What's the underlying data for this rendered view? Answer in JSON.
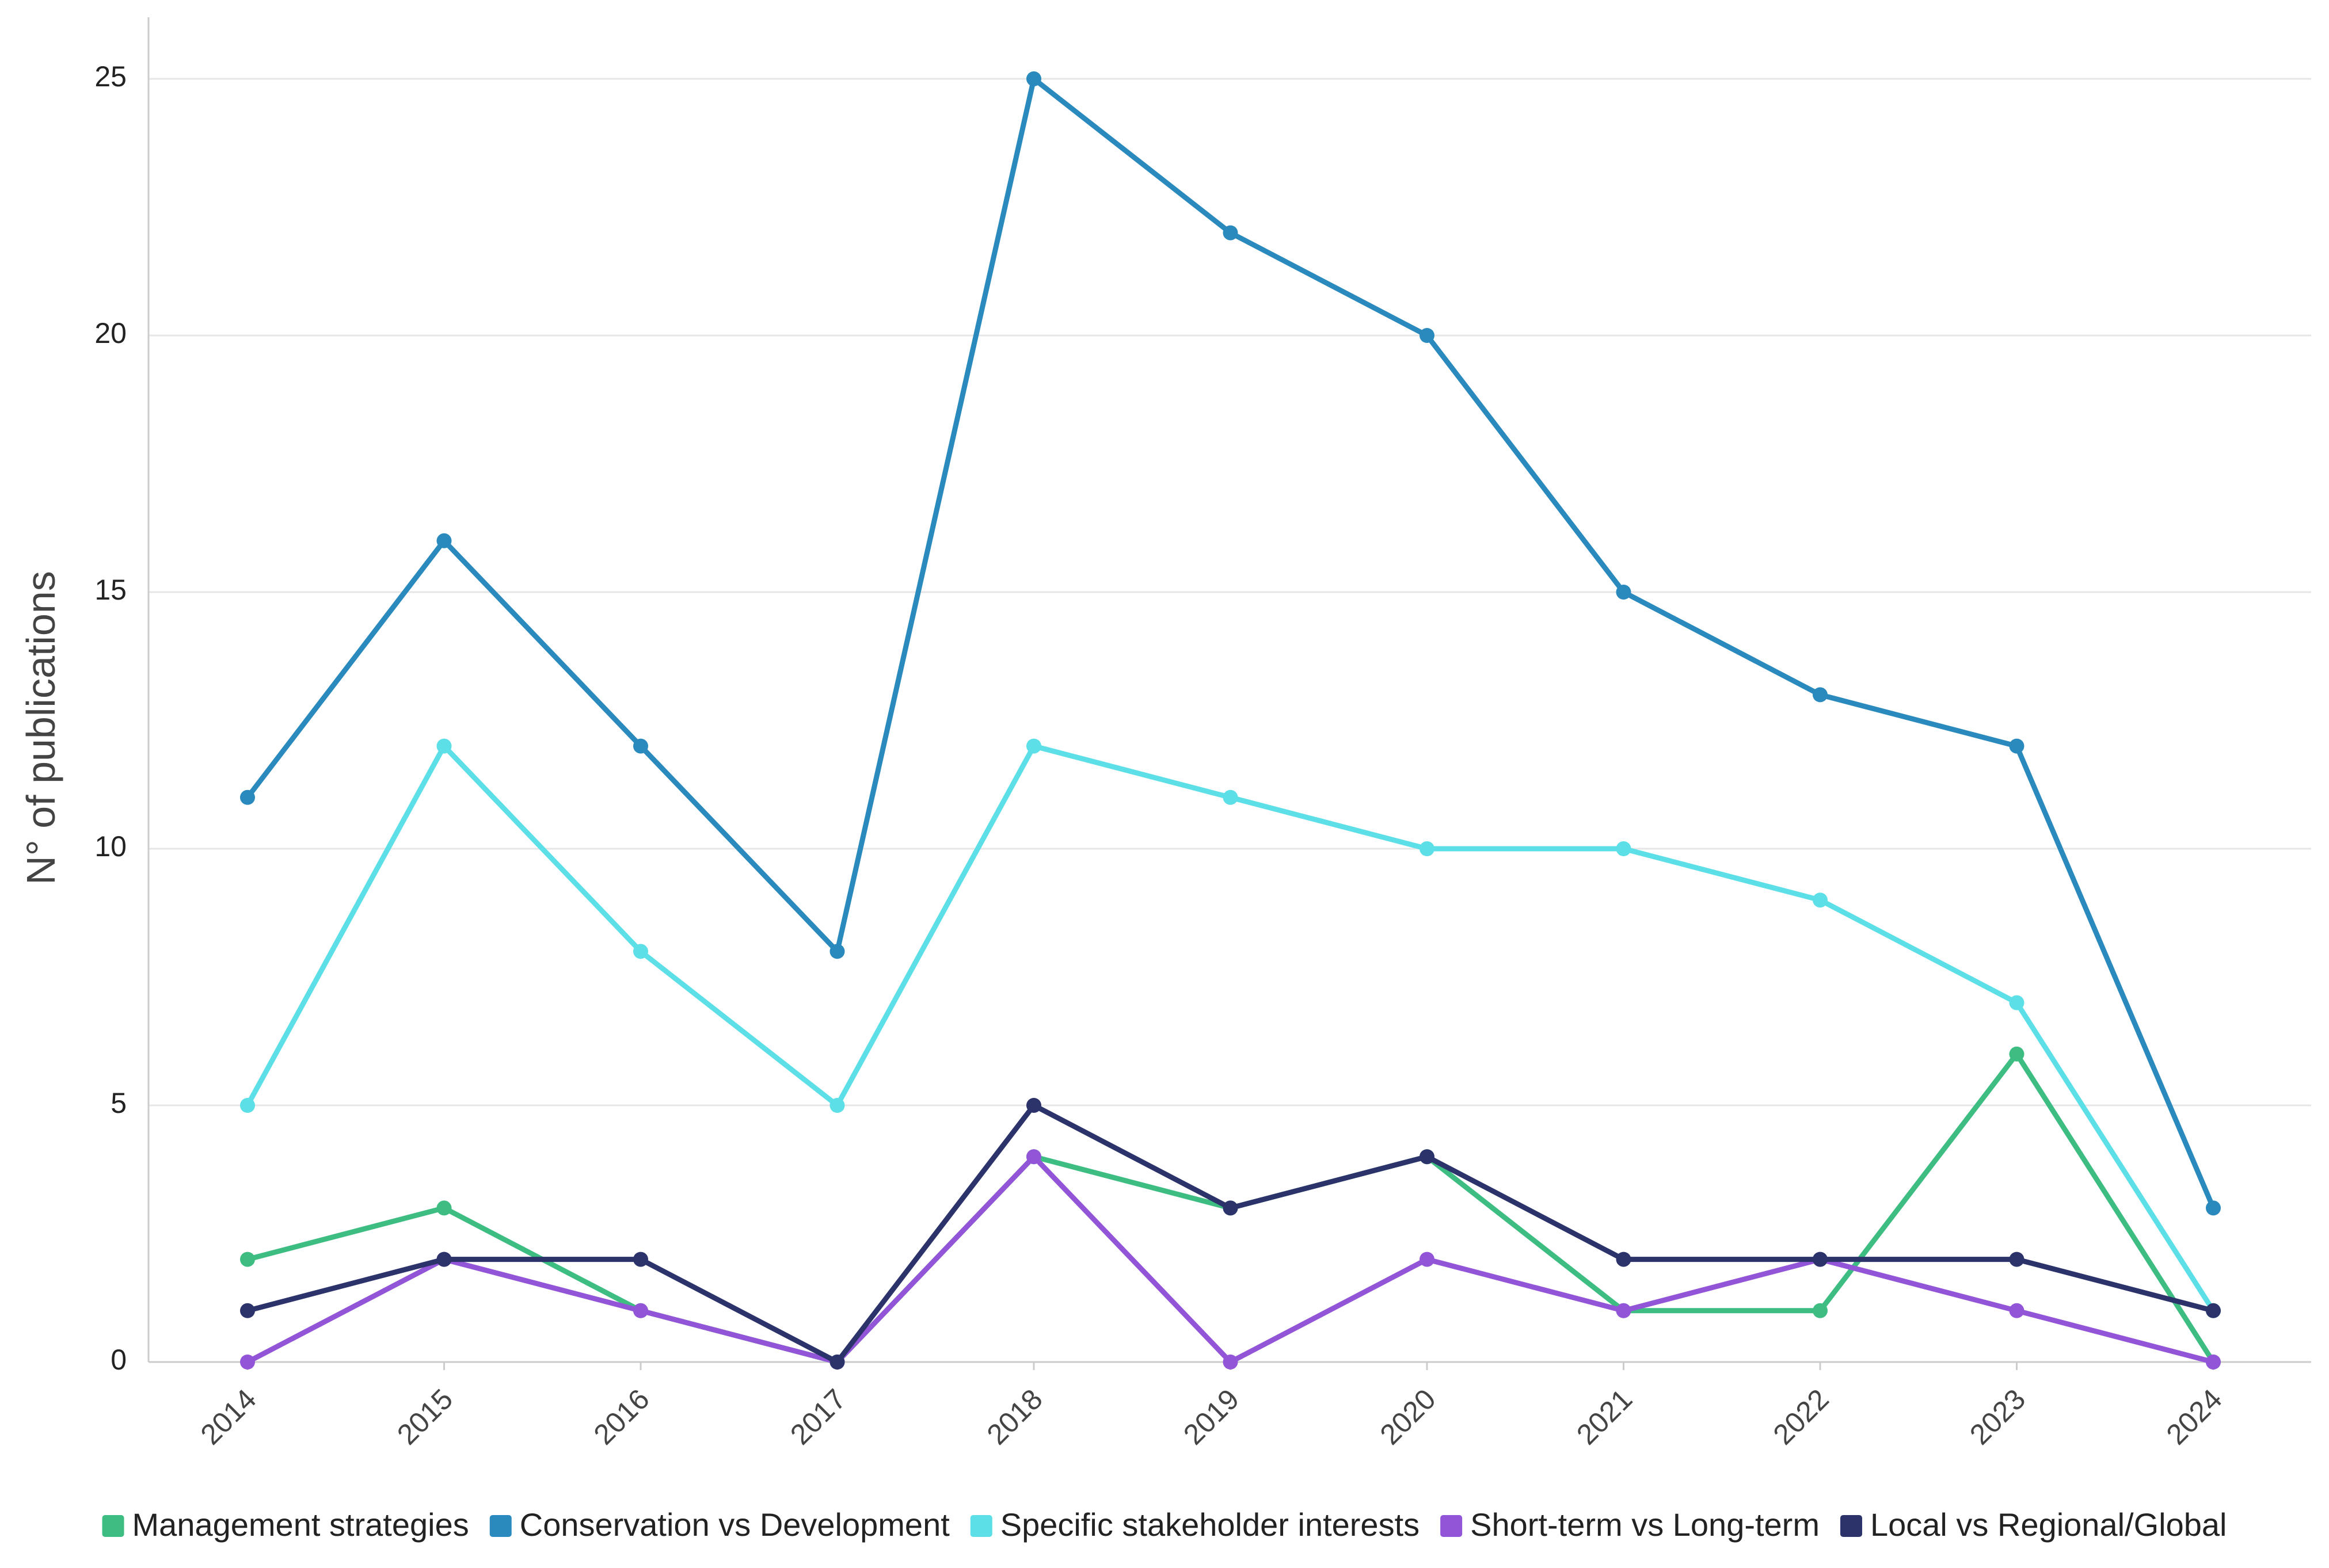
{
  "chart_data": {
    "type": "line",
    "title": "",
    "xlabel": "",
    "ylabel": "N° of publications",
    "ylim": [
      0,
      26
    ],
    "yticks": [
      0,
      5,
      10,
      15,
      20,
      25
    ],
    "categories": [
      "2014",
      "2015",
      "2016",
      "2017",
      "2018",
      "2019",
      "2020",
      "2021",
      "2022",
      "2023",
      "2024"
    ],
    "grid": true,
    "legend_position": "bottom",
    "series": [
      {
        "name": "Management strategies",
        "color": "#3dbd82",
        "values": [
          2,
          3,
          1,
          0,
          4,
          3,
          4,
          1,
          1,
          6,
          0
        ]
      },
      {
        "name": "Conservation vs Development",
        "color": "#2a8abd",
        "values": [
          11,
          16,
          12,
          8,
          25,
          22,
          20,
          15,
          13,
          12,
          3
        ]
      },
      {
        "name": "Specific stakeholder interests",
        "color": "#5cdfe6",
        "values": [
          5,
          12,
          8,
          5,
          12,
          11,
          10,
          10,
          9,
          7,
          1
        ]
      },
      {
        "name": "Short-term vs Long-term",
        "color": "#9355d8",
        "values": [
          0,
          2,
          1,
          0,
          4,
          0,
          2,
          1,
          2,
          1,
          0
        ]
      },
      {
        "name": "Local vs Regional/Global",
        "color": "#2b336a",
        "values": [
          1,
          2,
          2,
          0,
          5,
          3,
          4,
          2,
          2,
          2,
          1
        ]
      }
    ]
  }
}
